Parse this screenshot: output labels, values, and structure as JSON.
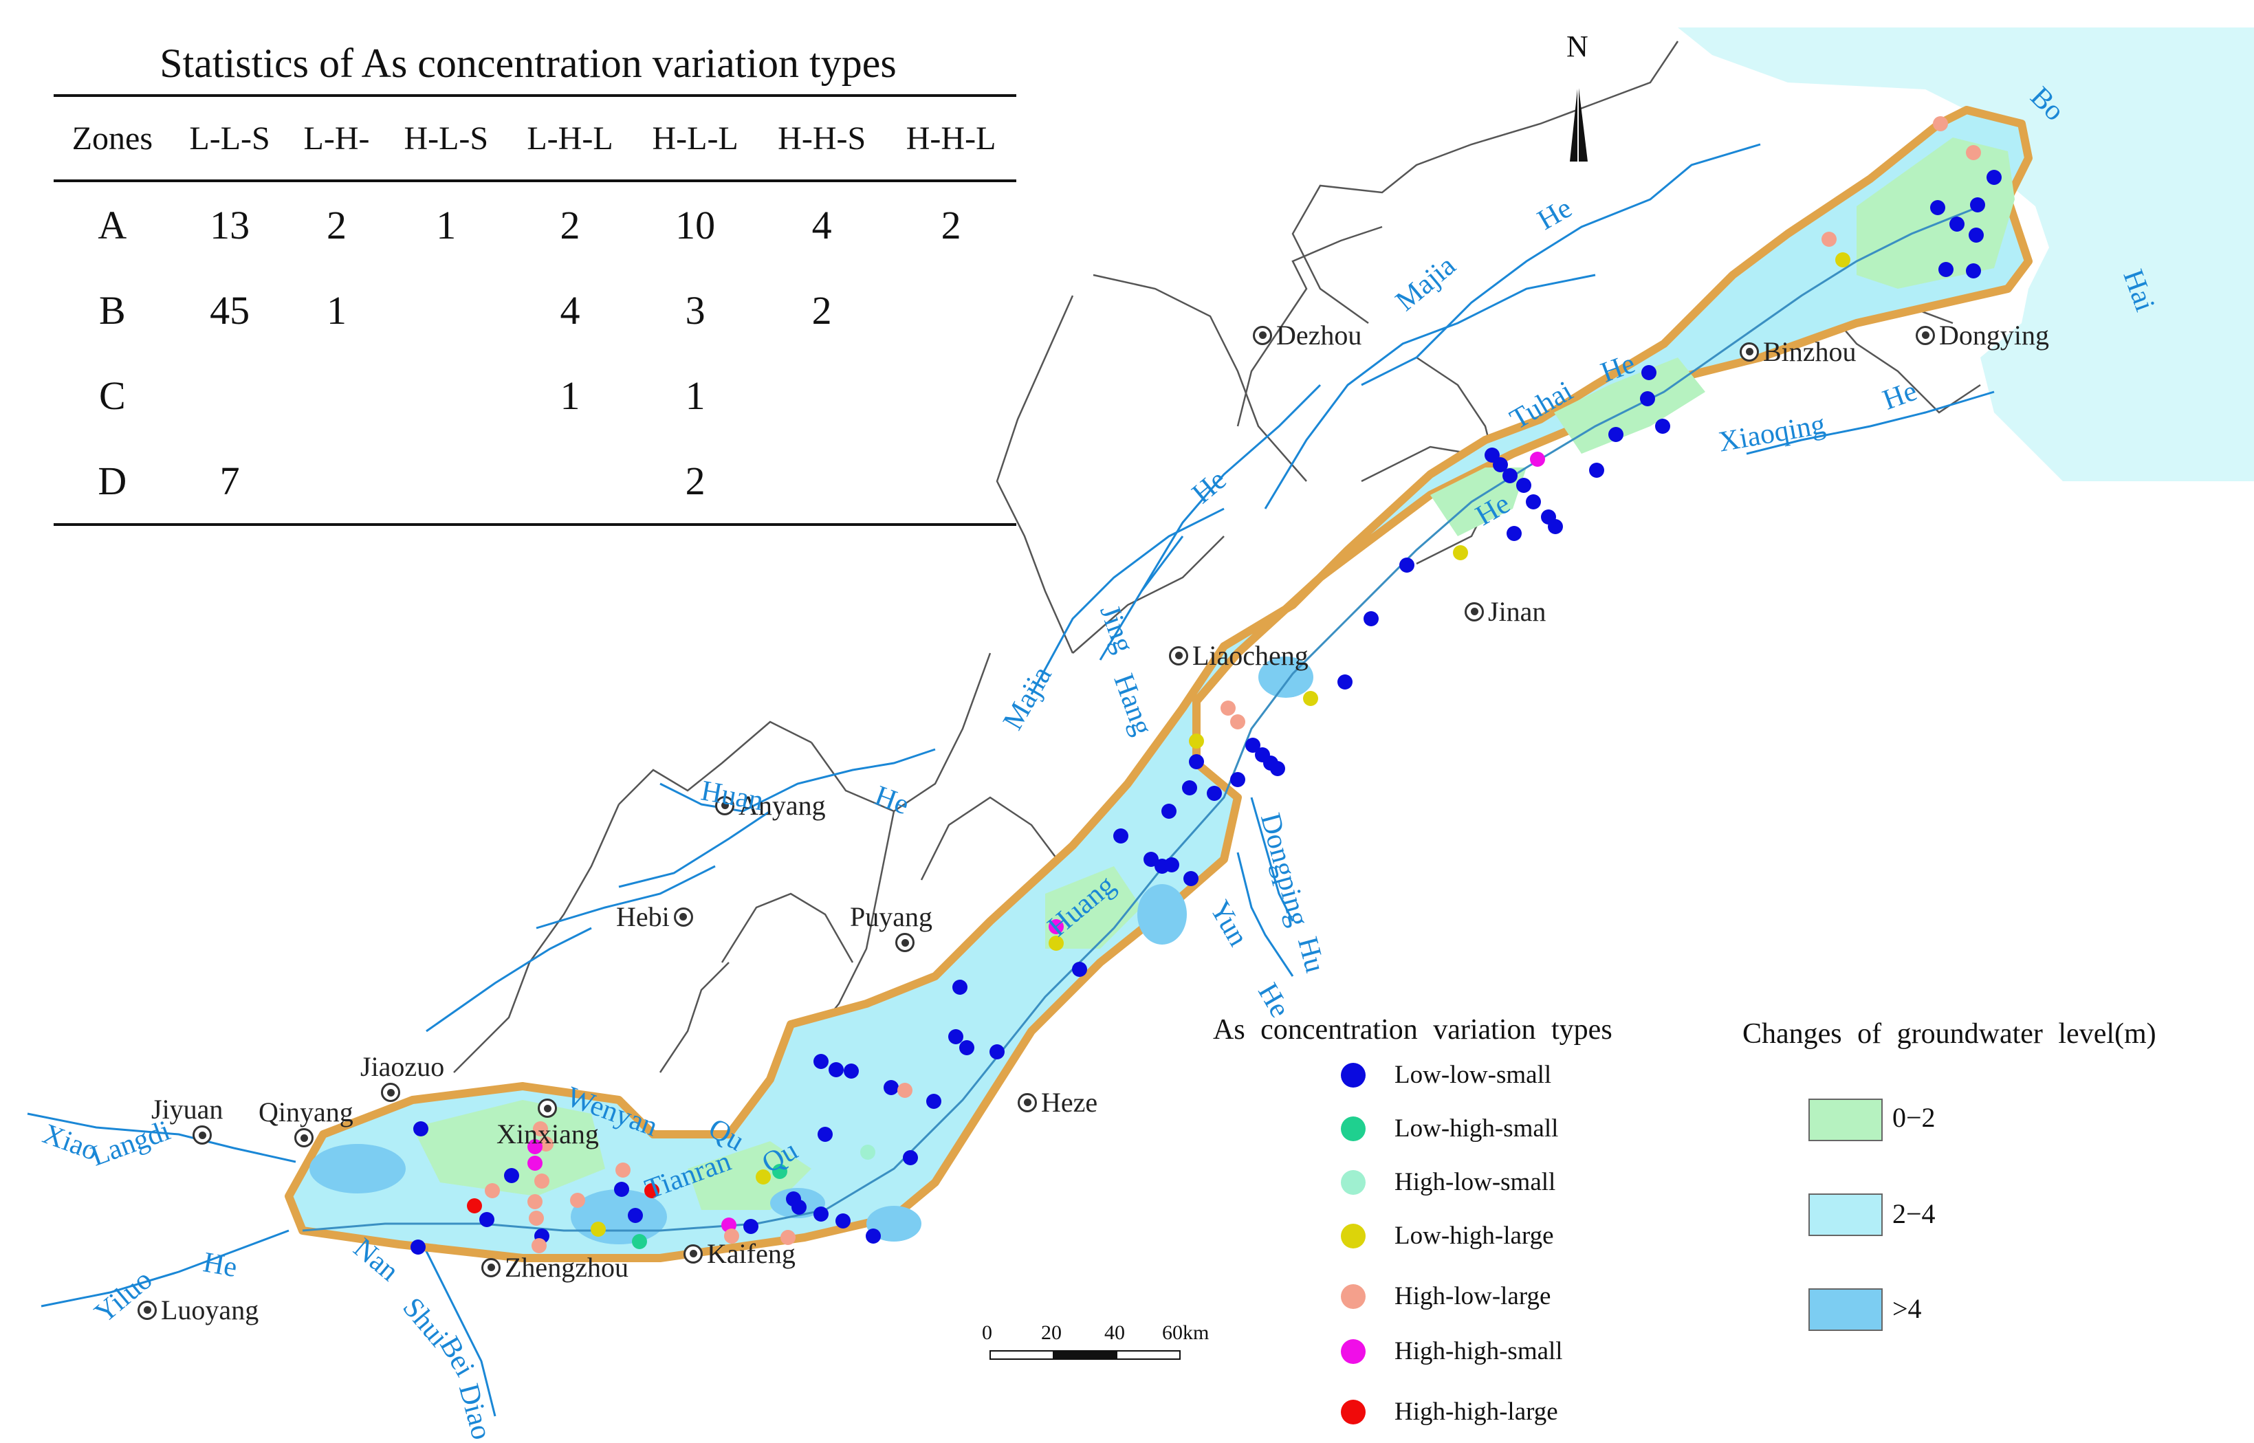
{
  "stats_table": {
    "title": "Statistics of As concentration variation types",
    "headers": [
      "Zones",
      "L-L-S",
      "L-H-",
      "H-L-S",
      "L-H-L",
      "H-L-L",
      "H-H-S",
      "H-H-L"
    ],
    "rows": [
      [
        "A",
        "13",
        "2",
        "1",
        "2",
        "10",
        "4",
        "2"
      ],
      [
        "B",
        "45",
        "1",
        "",
        "4",
        "3",
        "2",
        ""
      ],
      [
        "C",
        "",
        "",
        "",
        "1",
        "1",
        "",
        ""
      ],
      [
        "D",
        "7",
        "",
        "",
        "",
        "2",
        "",
        ""
      ]
    ]
  },
  "legend_as": {
    "title": "As concentration variation types",
    "items": [
      {
        "label": "Low-low-small",
        "color": "#0a0adf"
      },
      {
        "label": "Low-high-small",
        "color": "#1fd08f"
      },
      {
        "label": "High-low-small",
        "color": "#9ff0d0"
      },
      {
        "label": "Low-high-large",
        "color": "#dcd40a"
      },
      {
        "label": "High-low-large",
        "color": "#f4a08c"
      },
      {
        "label": "High-high-small",
        "color": "#f00ee8"
      },
      {
        "label": "High-high-large",
        "color": "#f00a0a"
      }
    ]
  },
  "legend_gw": {
    "title": "Changes of groundwater level(m)",
    "items": [
      {
        "label": "0−2",
        "color": "#b6f2c0"
      },
      {
        "label": "2−4",
        "color": "#b2eef8"
      },
      {
        "label": ">4",
        "color": "#7ccdf2"
      }
    ]
  },
  "north_label": "N",
  "scale": {
    "ticks": [
      "0",
      "20",
      "40",
      "60km"
    ]
  },
  "places": [
    "Dezhou",
    "Binzhou",
    "Dongying",
    "Jinan",
    "Liaocheng",
    "Anyang",
    "Hebi",
    "Puyang",
    "Heze",
    "Jiaozuo",
    "Jiyuan",
    "Qinyang",
    "Xinxiang",
    "Zhengzhou",
    "Kaifeng",
    "Luoyang"
  ],
  "rivers": [
    "Bo",
    "Hai",
    "Majia",
    "He",
    "Tuhai",
    "He",
    "Xiaoqing",
    "He",
    "He",
    "He",
    "Jing",
    "Hang",
    "Majia",
    "Huan",
    "He",
    "Dongping",
    "Hu",
    "Yun",
    "He",
    "Huang",
    "Wenyan",
    "Qu",
    "Tianran",
    "Qu",
    "Xiao",
    "Langdi",
    "Yiluo",
    "He",
    "Nan",
    "Shui",
    "Bei",
    "Diao"
  ],
  "colors": {
    "river": "#1a87d6",
    "sea": "#d6f8fa",
    "boundary": "#e0a44a",
    "zone_fill": "#b2eef8"
  }
}
